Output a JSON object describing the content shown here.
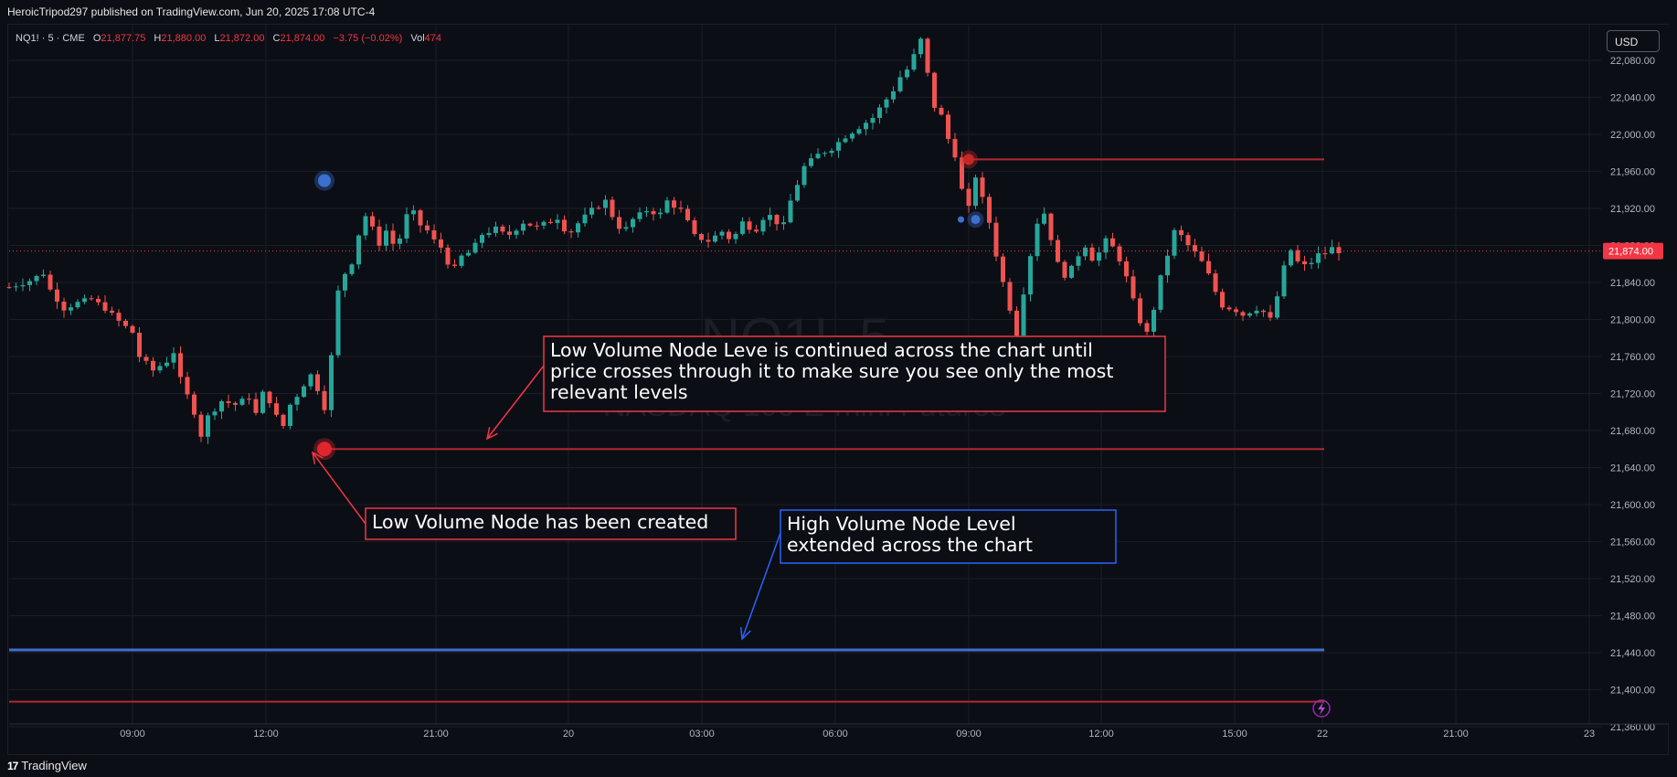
{
  "header": {
    "publish_line": "HeroicTripod297 published on TradingView.com, Jun 20, 2025 17:08 UTC-4"
  },
  "legend": {
    "symbol": "NQ1! · 5 · CME",
    "open_label": "O",
    "open": "21,877.75",
    "high_label": "H",
    "high": "21,880.00",
    "low_label": "L",
    "low": "21,872.00",
    "close_label": "C",
    "close": "21,874.00",
    "change": "−3.75 (−0.02%)",
    "vol_label": "Vol",
    "vol": "474"
  },
  "watermark": {
    "symbol": "NQ1!, 5",
    "name": "NASDAQ 100 E-mini Futures"
  },
  "currency_button": "USD",
  "price_tag": "21,874.00",
  "footer": {
    "brand": "TradingView"
  },
  "annotations": [
    {
      "id": "lvn-continued",
      "color": "#f23645",
      "lines": [
        "Low Volume Node Leve is continued across the chart until",
        "price crosses through it to make sure you see only the most",
        "relevant levels"
      ]
    },
    {
      "id": "lvn-created",
      "color": "#f23645",
      "lines": [
        "Low Volume Node has been created"
      ]
    },
    {
      "id": "hvn-extended",
      "color": "#2962ff",
      "lines": [
        "High Volume Node Level",
        "extended across the chart"
      ]
    }
  ],
  "colors": {
    "background": "#0c0e15",
    "grid": "#1a1d26",
    "up": "#26a69a",
    "down": "#ef5350",
    "lvn_line": "#b22833",
    "hvn_line": "#3d6fd0",
    "price_tag": "#f23645"
  },
  "chart_data": {
    "type": "candlestick",
    "symbol": "NQ1!",
    "interval": "5",
    "exchange": "CME",
    "title": "",
    "ylim": [
      21340,
      22100
    ],
    "y_ticks": [
      "22,080.00",
      "22,040.00",
      "22,000.00",
      "21,960.00",
      "21,920.00",
      "21,880.00",
      "21,840.00",
      "21,800.00",
      "21,760.00",
      "21,720.00",
      "21,680.00",
      "21,640.00",
      "21,600.00",
      "21,560.00",
      "21,520.00",
      "21,480.00",
      "21,440.00",
      "21,400.00",
      "21,360.00"
    ],
    "x_ticks": [
      "09:00",
      "12:00",
      "21:00",
      "20",
      "03:00",
      "06:00",
      "09:00",
      "12:00",
      "15:00",
      "22",
      "21:00",
      "23"
    ],
    "last_price": 21874,
    "price_path": [
      [
        0,
        21835
      ],
      [
        3,
        21842
      ],
      [
        5,
        21850
      ],
      [
        6,
        21832
      ],
      [
        8,
        21812
      ],
      [
        10,
        21818
      ],
      [
        12,
        21822
      ],
      [
        14,
        21812
      ],
      [
        16,
        21798
      ],
      [
        18,
        21786
      ],
      [
        19,
        21760
      ],
      [
        21,
        21745
      ],
      [
        23,
        21755
      ],
      [
        24,
        21765
      ],
      [
        25,
        21735
      ],
      [
        27,
        21700
      ],
      [
        28,
        21675
      ],
      [
        29,
        21695
      ],
      [
        31,
        21712
      ],
      [
        33,
        21708
      ],
      [
        35,
        21716
      ],
      [
        36,
        21698
      ],
      [
        37,
        21720
      ],
      [
        38,
        21712
      ],
      [
        39,
        21695
      ],
      [
        40,
        21685
      ],
      [
        41,
        21708
      ],
      [
        42,
        21718
      ],
      [
        43,
        21730
      ],
      [
        44,
        21740
      ],
      [
        45,
        21725
      ],
      [
        46,
        21705
      ],
      [
        47,
        21760
      ],
      [
        48,
        21830
      ],
      [
        49,
        21850
      ],
      [
        50,
        21862
      ],
      [
        51,
        21892
      ],
      [
        52,
        21912
      ],
      [
        53,
        21898
      ],
      [
        54,
        21882
      ],
      [
        55,
        21896
      ],
      [
        56,
        21882
      ],
      [
        57,
        21888
      ],
      [
        58,
        21912
      ],
      [
        59,
        21915
      ],
      [
        60,
        21902
      ],
      [
        61,
        21896
      ],
      [
        62,
        21885
      ],
      [
        63,
        21878
      ],
      [
        64,
        21862
      ],
      [
        65,
        21855
      ],
      [
        66,
        21868
      ],
      [
        67,
        21872
      ],
      [
        68,
        21880
      ],
      [
        69,
        21892
      ],
      [
        71,
        21898
      ],
      [
        72,
        21893
      ],
      [
        73,
        21892
      ],
      [
        75,
        21905
      ],
      [
        77,
        21900
      ],
      [
        79,
        21906
      ],
      [
        80,
        21910
      ],
      [
        81,
        21898
      ],
      [
        82,
        21895
      ],
      [
        83,
        21904
      ],
      [
        85,
        21918
      ],
      [
        87,
        21928
      ],
      [
        88,
        21912
      ],
      [
        89,
        21900
      ],
      [
        90,
        21898
      ],
      [
        91,
        21908
      ],
      [
        93,
        21918
      ],
      [
        95,
        21914
      ],
      [
        96,
        21928
      ],
      [
        98,
        21918
      ],
      [
        99,
        21905
      ],
      [
        100,
        21890
      ],
      [
        102,
        21885
      ],
      [
        104,
        21895
      ],
      [
        105,
        21888
      ],
      [
        106,
        21892
      ],
      [
        107,
        21905
      ],
      [
        108,
        21900
      ],
      [
        109,
        21898
      ],
      [
        110,
        21910
      ],
      [
        111,
        21912
      ],
      [
        112,
        21905
      ],
      [
        113,
        21902
      ],
      [
        114,
        21928
      ],
      [
        116,
        21965
      ],
      [
        118,
        21978
      ],
      [
        120,
        21985
      ],
      [
        122,
        21998
      ],
      [
        124,
        22008
      ],
      [
        126,
        22018
      ],
      [
        128,
        22038
      ],
      [
        129,
        22048
      ],
      [
        130,
        22062
      ],
      [
        131,
        22070
      ],
      [
        132,
        22085
      ],
      [
        133,
        22102
      ],
      [
        134,
        22065
      ],
      [
        135,
        22030
      ],
      [
        136,
        22020
      ],
      [
        137,
        21995
      ],
      [
        138,
        21978
      ],
      [
        139,
        21940
      ],
      [
        140,
        21920
      ],
      [
        141,
        21955
      ],
      [
        142,
        21930
      ],
      [
        143,
        21905
      ],
      [
        144,
        21870
      ],
      [
        145,
        21840
      ],
      [
        146,
        21812
      ],
      [
        147,
        21785
      ],
      [
        148,
        21830
      ],
      [
        149,
        21870
      ],
      [
        150,
        21905
      ],
      [
        151,
        21915
      ],
      [
        152,
        21888
      ],
      [
        153,
        21860
      ],
      [
        154,
        21848
      ],
      [
        155,
        21855
      ],
      [
        156,
        21870
      ],
      [
        157,
        21880
      ],
      [
        158,
        21866
      ],
      [
        159,
        21872
      ],
      [
        160,
        21885
      ],
      [
        161,
        21878
      ],
      [
        162,
        21865
      ],
      [
        163,
        21845
      ],
      [
        164,
        21820
      ],
      [
        165,
        21798
      ],
      [
        166,
        21785
      ],
      [
        167,
        21812
      ],
      [
        168,
        21845
      ],
      [
        169,
        21870
      ],
      [
        170,
        21895
      ],
      [
        171,
        21890
      ],
      [
        172,
        21880
      ],
      [
        173,
        21872
      ],
      [
        174,
        21862
      ],
      [
        175,
        21848
      ],
      [
        176,
        21830
      ],
      [
        177,
        21815
      ],
      [
        179,
        21810
      ],
      [
        180,
        21805
      ],
      [
        182,
        21812
      ],
      [
        183,
        21808
      ],
      [
        184,
        21800
      ],
      [
        185,
        21825
      ],
      [
        186,
        21856
      ],
      [
        187,
        21875
      ],
      [
        188,
        21862
      ],
      [
        189,
        21858
      ],
      [
        190,
        21862
      ],
      [
        191,
        21870
      ],
      [
        192,
        21872
      ],
      [
        193,
        21877
      ],
      [
        194,
        21874
      ]
    ],
    "levels": [
      {
        "kind": "low_volume_node",
        "price": 21973,
        "marker_bar": 140
      },
      {
        "kind": "low_volume_node",
        "price": 21660,
        "marker_bar": 46
      },
      {
        "kind": "high_volume_node",
        "price": 21443
      },
      {
        "kind": "low_volume_node",
        "price": 21387
      }
    ],
    "markers": [
      {
        "kind": "high_volume_node",
        "price": 21950,
        "bar": 46
      },
      {
        "kind": "high_volume_node",
        "price": 21908,
        "bar": 141
      },
      {
        "kind": "high_volume_node",
        "price": 21908,
        "bar": 139
      }
    ]
  }
}
